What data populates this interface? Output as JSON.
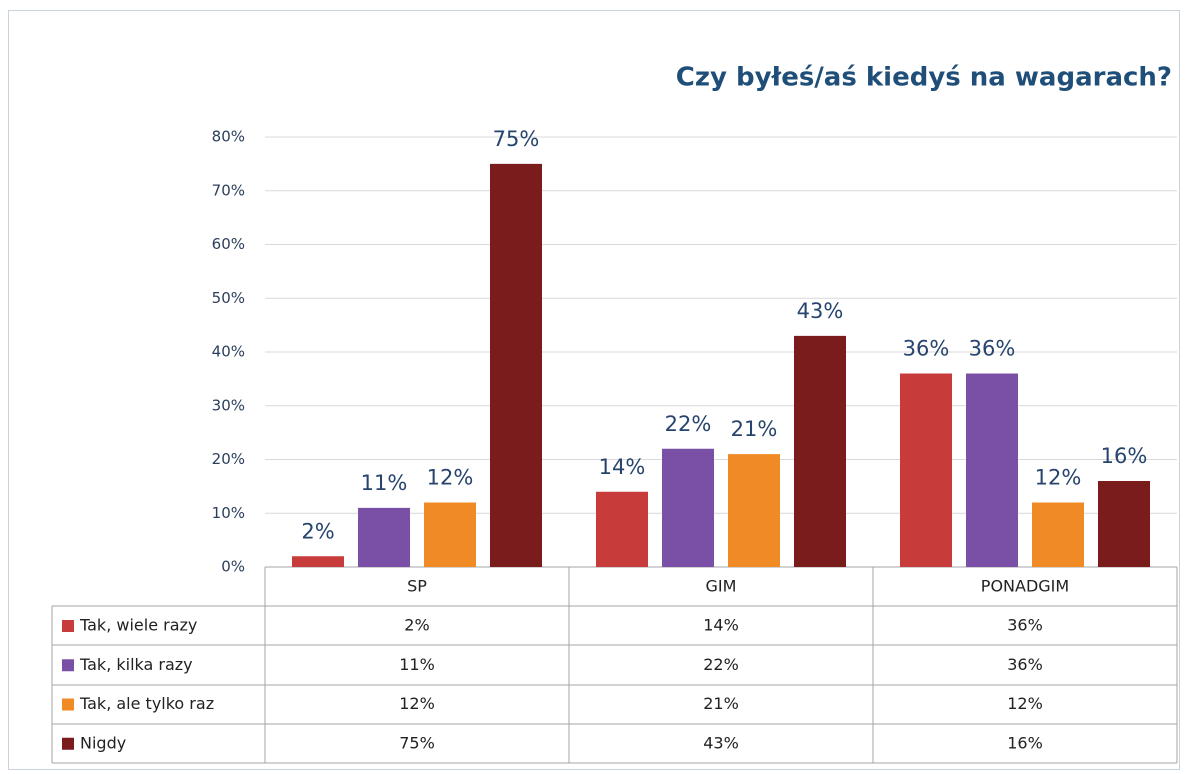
{
  "chart_data": {
    "type": "bar",
    "title": "Czy byłeś/aś kiedyś na wagarach?",
    "categories": [
      "SP",
      "GIM",
      "PONADGIM"
    ],
    "series": [
      {
        "name": "Tak, wiele razy",
        "color": "#c83b3b",
        "values": [
          2,
          14,
          36
        ],
        "value_labels": [
          "2%",
          "14%",
          "36%"
        ]
      },
      {
        "name": "Tak, kilka razy",
        "color": "#7a50a6",
        "values": [
          11,
          22,
          36
        ],
        "value_labels": [
          "11%",
          "22%",
          "36%"
        ]
      },
      {
        "name": "Tak, ale tylko raz",
        "color": "#f08a24",
        "values": [
          12,
          21,
          12
        ],
        "value_labels": [
          "12%",
          "21%",
          "12%"
        ]
      },
      {
        "name": "Nigdy",
        "color": "#7a1c1c",
        "values": [
          75,
          43,
          16
        ],
        "value_labels": [
          "75%",
          "43%",
          "16%"
        ]
      }
    ],
    "ylim": [
      0,
      80
    ],
    "yticks": [
      {
        "value": 0,
        "label": "0%"
      },
      {
        "value": 10,
        "label": "10%"
      },
      {
        "value": 20,
        "label": "20%"
      },
      {
        "value": 30,
        "label": "30%"
      },
      {
        "value": 40,
        "label": "40%"
      },
      {
        "value": 50,
        "label": "50%"
      },
      {
        "value": 60,
        "label": "60%"
      },
      {
        "value": 70,
        "label": "70%"
      },
      {
        "value": 80,
        "label": "80%"
      }
    ],
    "grid": true
  }
}
